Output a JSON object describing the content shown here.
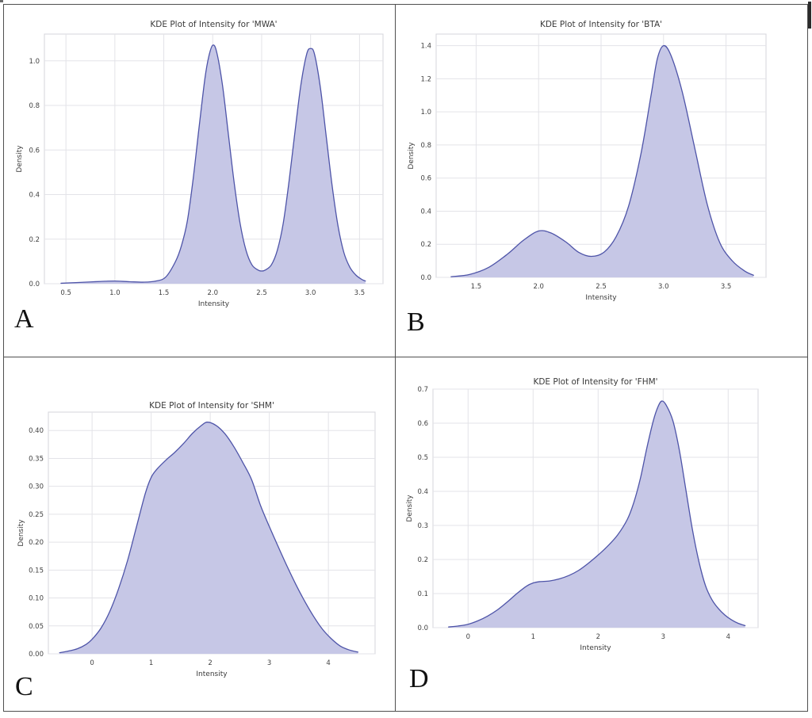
{
  "style": {
    "line_color": "#4e54a8",
    "fill_color": "#c6c7e6",
    "grid_color": "#e3e3e8",
    "frame_color": "#d5d5db",
    "text_color": "#3a3a3a",
    "table_border_color": "#4f4f4f"
  },
  "chart_data": [
    {
      "panel_label": "A",
      "type": "area",
      "title": "KDE Plot of Intensity for 'MWA'",
      "xlabel": "Intensity",
      "ylabel": "Density",
      "xlim": [
        0.28,
        3.74
      ],
      "ylim": [
        0,
        1.12
      ],
      "grid": true,
      "legend": "none",
      "xticks": [
        {
          "v": 0.5,
          "label": "0.5"
        },
        {
          "v": 1.0,
          "label": "1.0"
        },
        {
          "v": 1.5,
          "label": "1.5"
        },
        {
          "v": 2.0,
          "label": "2.0"
        },
        {
          "v": 2.5,
          "label": "2.5"
        },
        {
          "v": 3.0,
          "label": "3.0"
        },
        {
          "v": 3.5,
          "label": "3.5"
        }
      ],
      "yticks": [
        {
          "v": 0.0,
          "label": "0.0"
        },
        {
          "v": 0.2,
          "label": "0.2"
        },
        {
          "v": 0.4,
          "label": "0.4"
        },
        {
          "v": 0.6,
          "label": "0.6"
        },
        {
          "v": 0.8,
          "label": "0.8"
        },
        {
          "v": 1.0,
          "label": "1.0"
        }
      ],
      "series": [
        {
          "name": "MWA KDE",
          "x": [
            0.45,
            0.6,
            0.75,
            0.9,
            1.0,
            1.15,
            1.3,
            1.42,
            1.52,
            1.62,
            1.68,
            1.74,
            1.8,
            1.86,
            1.92,
            1.96,
            2.0,
            2.04,
            2.1,
            2.16,
            2.22,
            2.28,
            2.34,
            2.4,
            2.46,
            2.5,
            2.54,
            2.6,
            2.66,
            2.72,
            2.78,
            2.84,
            2.9,
            2.96,
            3.0,
            3.04,
            3.1,
            3.16,
            3.22,
            3.28,
            3.34,
            3.4,
            3.46,
            3.52,
            3.56
          ],
          "y": [
            0.002,
            0.005,
            0.008,
            0.011,
            0.012,
            0.009,
            0.007,
            0.012,
            0.03,
            0.1,
            0.17,
            0.28,
            0.47,
            0.7,
            0.92,
            1.02,
            1.07,
            1.04,
            0.89,
            0.67,
            0.45,
            0.27,
            0.15,
            0.085,
            0.062,
            0.057,
            0.062,
            0.085,
            0.15,
            0.27,
            0.46,
            0.68,
            0.89,
            1.03,
            1.055,
            1.03,
            0.88,
            0.66,
            0.44,
            0.26,
            0.14,
            0.075,
            0.04,
            0.02,
            0.012
          ]
        }
      ]
    },
    {
      "panel_label": "B",
      "type": "area",
      "title": "KDE Plot of Intensity for 'BTA'",
      "xlabel": "Intensity",
      "ylabel": "Density",
      "xlim": [
        1.18,
        3.82
      ],
      "ylim": [
        0,
        1.47
      ],
      "grid": true,
      "legend": "none",
      "xticks": [
        {
          "v": 1.5,
          "label": "1.5"
        },
        {
          "v": 2.0,
          "label": "2.0"
        },
        {
          "v": 2.5,
          "label": "2.5"
        },
        {
          "v": 3.0,
          "label": "3.0"
        },
        {
          "v": 3.5,
          "label": "3.5"
        }
      ],
      "yticks": [
        {
          "v": 0.0,
          "label": "0.0"
        },
        {
          "v": 0.2,
          "label": "0.2"
        },
        {
          "v": 0.4,
          "label": "0.4"
        },
        {
          "v": 0.6,
          "label": "0.6"
        },
        {
          "v": 0.8,
          "label": "0.8"
        },
        {
          "v": 1.0,
          "label": "1.0"
        },
        {
          "v": 1.2,
          "label": "1.2"
        },
        {
          "v": 1.4,
          "label": "1.4"
        }
      ],
      "series": [
        {
          "name": "BTA KDE",
          "x": [
            1.3,
            1.45,
            1.6,
            1.75,
            1.88,
            2.0,
            2.1,
            2.22,
            2.32,
            2.42,
            2.52,
            2.62,
            2.72,
            2.82,
            2.9,
            2.95,
            3.0,
            3.06,
            3.15,
            3.25,
            3.35,
            3.45,
            3.55,
            3.65,
            3.72
          ],
          "y": [
            0.004,
            0.018,
            0.06,
            0.14,
            0.225,
            0.28,
            0.268,
            0.213,
            0.152,
            0.127,
            0.15,
            0.245,
            0.43,
            0.75,
            1.1,
            1.32,
            1.4,
            1.34,
            1.12,
            0.78,
            0.44,
            0.21,
            0.1,
            0.038,
            0.013
          ]
        }
      ]
    },
    {
      "panel_label": "C",
      "type": "area",
      "title": "KDE Plot of Intensity for 'SHM'",
      "xlabel": "Intensity",
      "ylabel": "Density",
      "xlim": [
        -0.74,
        4.79
      ],
      "ylim": [
        0,
        0.433
      ],
      "grid": true,
      "legend": "none",
      "xticks": [
        {
          "v": 0,
          "label": "0"
        },
        {
          "v": 1,
          "label": "1"
        },
        {
          "v": 2,
          "label": "2"
        },
        {
          "v": 3,
          "label": "3"
        },
        {
          "v": 4,
          "label": "4"
        }
      ],
      "yticks": [
        {
          "v": 0.0,
          "label": "0.00"
        },
        {
          "v": 0.05,
          "label": "0.05"
        },
        {
          "v": 0.1,
          "label": "0.10"
        },
        {
          "v": 0.15,
          "label": "0.15"
        },
        {
          "v": 0.2,
          "label": "0.20"
        },
        {
          "v": 0.25,
          "label": "0.25"
        },
        {
          "v": 0.3,
          "label": "0.30"
        },
        {
          "v": 0.35,
          "label": "0.35"
        },
        {
          "v": 0.4,
          "label": "0.40"
        }
      ],
      "series": [
        {
          "name": "SHM KDE",
          "x": [
            -0.55,
            -0.4,
            -0.25,
            -0.1,
            0.0,
            0.15,
            0.3,
            0.45,
            0.6,
            0.75,
            0.9,
            1.0,
            1.1,
            1.25,
            1.4,
            1.55,
            1.7,
            1.85,
            1.95,
            2.1,
            2.25,
            2.4,
            2.55,
            2.7,
            2.85,
            3.0,
            3.15,
            3.3,
            3.45,
            3.6,
            3.75,
            3.9,
            4.05,
            4.2,
            4.35,
            4.5
          ],
          "y": [
            0.002,
            0.005,
            0.009,
            0.017,
            0.026,
            0.046,
            0.076,
            0.117,
            0.167,
            0.227,
            0.287,
            0.316,
            0.331,
            0.347,
            0.361,
            0.377,
            0.395,
            0.409,
            0.415,
            0.409,
            0.394,
            0.371,
            0.343,
            0.312,
            0.266,
            0.228,
            0.192,
            0.157,
            0.124,
            0.094,
            0.067,
            0.044,
            0.027,
            0.014,
            0.007,
            0.003
          ]
        }
      ]
    },
    {
      "panel_label": "D",
      "type": "area",
      "title": "KDE Plot of Intensity for 'FHM'",
      "xlabel": "Intensity",
      "ylabel": "Density",
      "xlim": [
        -0.54,
        4.46
      ],
      "ylim": [
        0,
        0.7
      ],
      "grid": true,
      "legend": "none",
      "xticks": [
        {
          "v": 0,
          "label": "0"
        },
        {
          "v": 1,
          "label": "1"
        },
        {
          "v": 2,
          "label": "2"
        },
        {
          "v": 3,
          "label": "3"
        },
        {
          "v": 4,
          "label": "4"
        }
      ],
      "yticks": [
        {
          "v": 0.0,
          "label": "0.0"
        },
        {
          "v": 0.1,
          "label": "0.1"
        },
        {
          "v": 0.2,
          "label": "0.2"
        },
        {
          "v": 0.3,
          "label": "0.3"
        },
        {
          "v": 0.4,
          "label": "0.4"
        },
        {
          "v": 0.5,
          "label": "0.5"
        },
        {
          "v": 0.6,
          "label": "0.6"
        },
        {
          "v": 0.7,
          "label": "0.7"
        }
      ],
      "series": [
        {
          "name": "FHM KDE",
          "x": [
            -0.3,
            -0.15,
            0.0,
            0.15,
            0.3,
            0.45,
            0.6,
            0.75,
            0.9,
            1.0,
            1.1,
            1.25,
            1.4,
            1.55,
            1.7,
            1.85,
            2.0,
            2.15,
            2.3,
            2.45,
            2.55,
            2.65,
            2.75,
            2.85,
            2.92,
            2.98,
            3.05,
            3.15,
            3.25,
            3.35,
            3.45,
            3.55,
            3.65,
            3.75,
            3.85,
            3.95,
            4.05,
            4.15,
            4.26
          ],
          "y": [
            0.002,
            0.005,
            0.01,
            0.02,
            0.034,
            0.052,
            0.075,
            0.1,
            0.122,
            0.131,
            0.135,
            0.137,
            0.143,
            0.153,
            0.168,
            0.189,
            0.213,
            0.24,
            0.272,
            0.318,
            0.368,
            0.438,
            0.528,
            0.608,
            0.648,
            0.665,
            0.652,
            0.607,
            0.52,
            0.404,
            0.288,
            0.194,
            0.124,
            0.082,
            0.056,
            0.037,
            0.023,
            0.013,
            0.006
          ]
        }
      ]
    }
  ]
}
